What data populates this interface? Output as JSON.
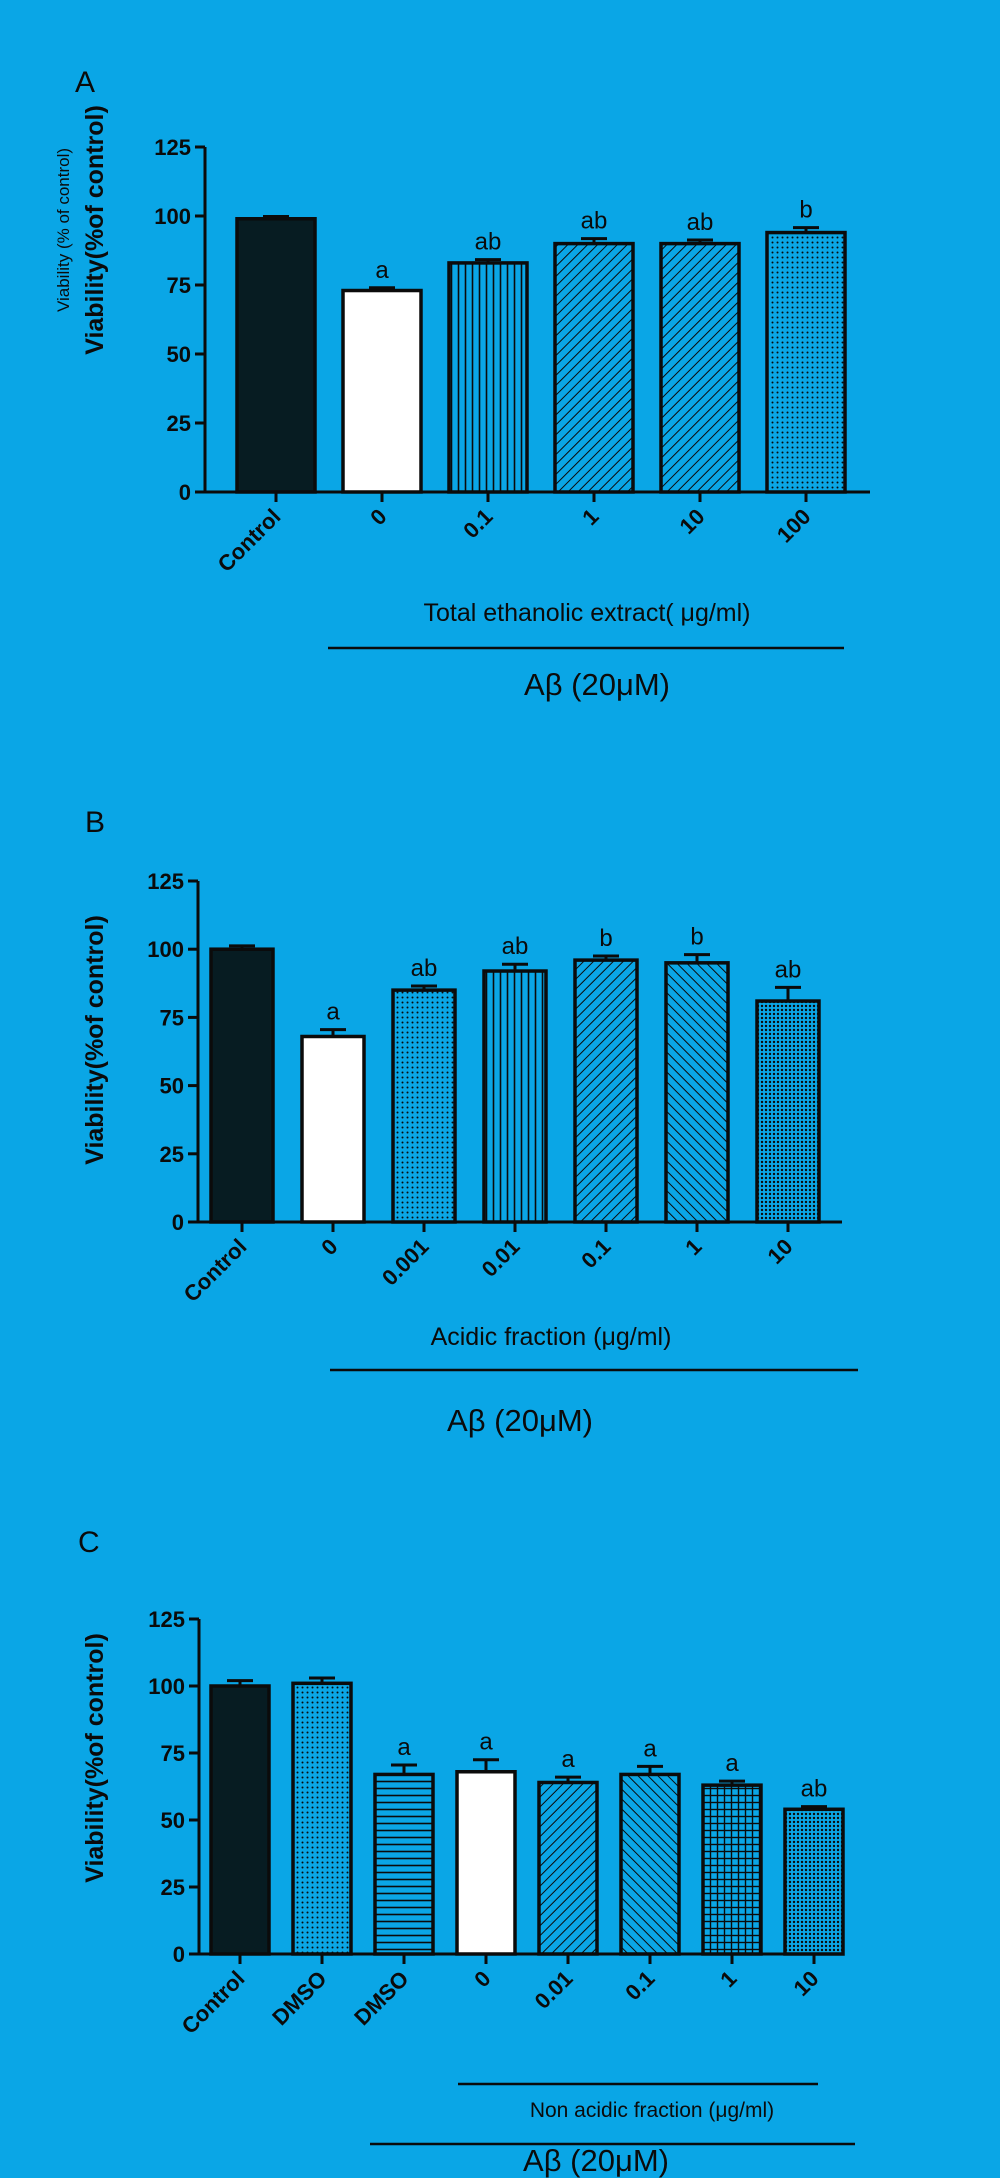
{
  "colors": {
    "background": "#0aa6e6",
    "ink": "#0b0b0b",
    "control_bar": "#071c22",
    "open_bar": "#ffffff",
    "hatch_bar": "#0aa6e6"
  },
  "chart_data": [
    {
      "type": "bar",
      "panel_label": "A",
      "ylabel": "Viability(%of control)",
      "ylabel_secondary": "Viability (% of control)",
      "ylim": [
        0,
        125
      ],
      "yticks": [
        "0",
        "25",
        "50",
        "75",
        "100",
        "125"
      ],
      "categories": [
        "Control",
        "0",
        "0.1",
        "1",
        "10",
        "100"
      ],
      "values": [
        99,
        73,
        83,
        90,
        90,
        94
      ],
      "errors": [
        0.8,
        1.0,
        1.2,
        1.8,
        1.3,
        1.8
      ],
      "significance": [
        "",
        "a",
        "ab",
        "ab",
        "ab",
        "b"
      ],
      "fills": [
        "solid",
        "open",
        "vertical",
        "diag-right",
        "diag-right",
        "dots"
      ],
      "group_title": "Total ethanolic extract( μg/ml)",
      "treatment_label": "Aβ (20μM)"
    },
    {
      "type": "bar",
      "panel_label": "B",
      "ylabel": "Viability(%of control)",
      "ylim": [
        0,
        125
      ],
      "yticks": [
        "0",
        "25",
        "50",
        "75",
        "100",
        "125"
      ],
      "categories": [
        "Control",
        "0",
        "0.001",
        "0.01",
        "0.1",
        "1",
        "10"
      ],
      "values": [
        100,
        68,
        85,
        92,
        96,
        95,
        81
      ],
      "errors": [
        1.2,
        2.5,
        1.5,
        2.5,
        1.5,
        3.0,
        5.0
      ],
      "significance": [
        "",
        "a",
        "ab",
        "ab",
        "b",
        "b",
        "ab"
      ],
      "fills": [
        "solid",
        "open",
        "dots",
        "vertical",
        "diag-right",
        "diag-left",
        "dense-dots"
      ],
      "group_title": "Acidic fraction  (μg/ml)",
      "treatment_label": "Aβ (20μM)"
    },
    {
      "type": "bar",
      "panel_label": "C",
      "ylabel": "Viability(%of control)",
      "ylim": [
        0,
        125
      ],
      "yticks": [
        "0",
        "25",
        "50",
        "75",
        "100",
        "125"
      ],
      "categories": [
        "Control",
        "DMSO",
        "DMSO",
        "0",
        "0.01",
        "0.1",
        "1",
        "10"
      ],
      "values": [
        100,
        101,
        67,
        68,
        64,
        67,
        63,
        54
      ],
      "errors": [
        2.0,
        2.0,
        3.5,
        4.5,
        2.0,
        3.0,
        1.5,
        1.0
      ],
      "significance": [
        "",
        "",
        "a",
        "a",
        "a",
        "a",
        "a",
        "ab"
      ],
      "fills": [
        "solid",
        "dots",
        "horizontal",
        "open",
        "diag-right",
        "diag-left",
        "grid",
        "dense-dots"
      ],
      "group_title": "Non acidic fraction   (μg/ml)",
      "treatment_label": "Aβ (20μM)"
    }
  ]
}
